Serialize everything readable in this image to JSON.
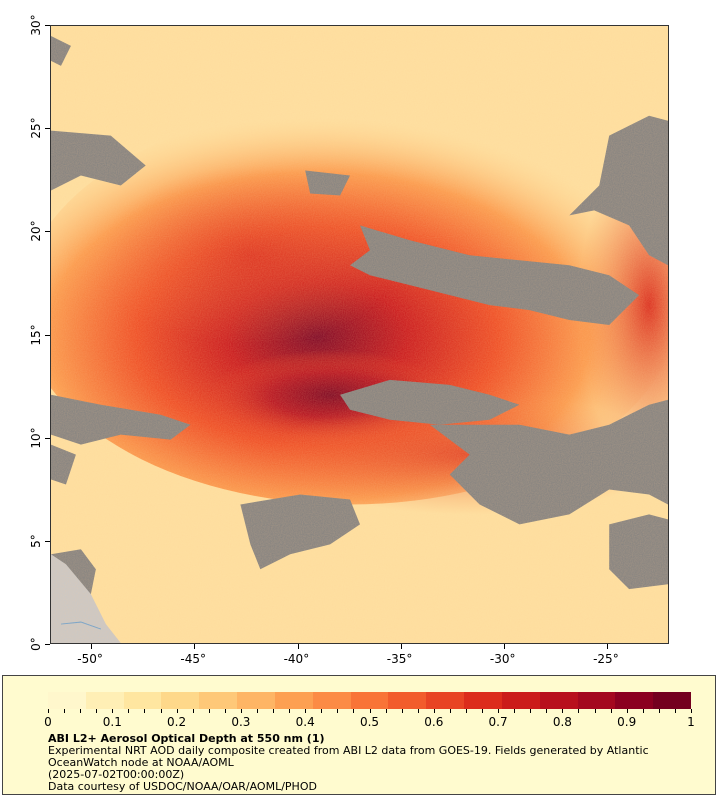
{
  "map": {
    "lat_labels": [
      "30°",
      "25°",
      "20°",
      "15°",
      "10°",
      "5°",
      "0°"
    ],
    "lon_labels": [
      "-50°",
      "-45°",
      "-40°",
      "-35°",
      "-30°",
      "-25°"
    ],
    "lat_range": [
      0,
      30
    ],
    "lon_range": [
      -52,
      -22
    ],
    "colors": {
      "no_data": "#808080",
      "land": "#c8c8c8",
      "low": "#fff3c0",
      "high": "#7f0020"
    }
  },
  "legend": {
    "ticks": [
      "0",
      "0.1",
      "0.2",
      "0.3",
      "0.4",
      "0.5",
      "0.6",
      "0.7",
      "0.8",
      "0.9",
      "1"
    ],
    "colors": [
      "#fff7cc",
      "#ffefb5",
      "#ffe6a0",
      "#fed88a",
      "#fec878",
      "#feb565",
      "#fda052",
      "#fc8b45",
      "#f97437",
      "#f25c2c",
      "#e84424",
      "#dc2c1c",
      "#cb1c1a",
      "#b8101d",
      "#a4081f",
      "#8b0020",
      "#74001f"
    ],
    "title": "ABI L2+ Aerosol Optical Depth at 550 nm (1)",
    "line1": "Experimental NRT AOD daily composite created from ABI L2 data from GOES-19. Fields generated by Atlantic OceanWatch node at NOAA/AOML",
    "line2": "(2025-07-02T00:00:00Z)",
    "line3": "Data courtesy of USDOC/NOAA/OAR/AOML/PHOD"
  }
}
